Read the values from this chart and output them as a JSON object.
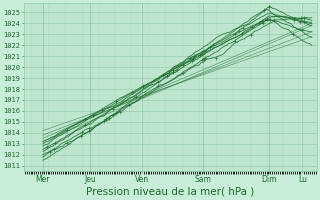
{
  "bg_color": "#c8edd8",
  "grid_color": "#90c8a8",
  "line_color": "#1a6b2a",
  "tick_color": "#1a6b2a",
  "xlabel": "Pression niveau de la mer( hPa )",
  "xlabel_fontsize": 7.5,
  "ylabel_values": [
    1011,
    1012,
    1013,
    1014,
    1015,
    1016,
    1017,
    1018,
    1019,
    1020,
    1021,
    1022,
    1023,
    1024,
    1025
  ],
  "ylim": [
    1010.5,
    1025.8
  ],
  "xlim": [
    -0.1,
    6.1
  ],
  "x_ticks": [
    0.3,
    1.3,
    2.4,
    3.7,
    5.1,
    5.8
  ],
  "x_tick_labels": [
    "Mer",
    "Jeu",
    "Ven",
    "Sam",
    "Dim",
    "Lu"
  ],
  "x_vlines": [
    0.3,
    1.3,
    2.4,
    3.7,
    5.1,
    5.8
  ],
  "n_points": 200,
  "figsize": [
    3.2,
    2.0
  ],
  "dpi": 100
}
